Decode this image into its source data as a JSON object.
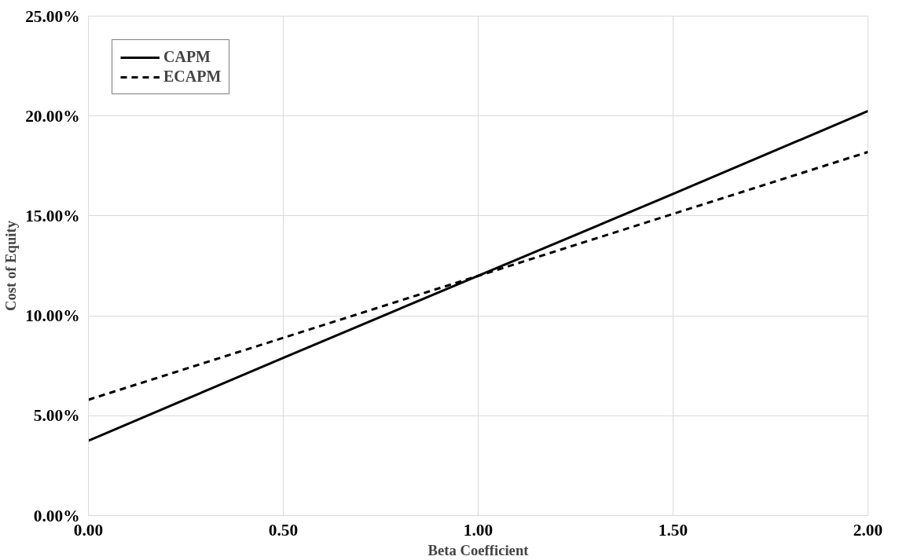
{
  "chart_data": {
    "type": "line",
    "xlabel": "Beta Coefficient",
    "ylabel": "Cost of Equity",
    "x": [
      0,
      0.5,
      1,
      1.5,
      2
    ],
    "series": [
      {
        "name": "CAPM",
        "color": "#000000",
        "line_style": "solid",
        "values": [
          3.75,
          7.9,
          12.0,
          16.1,
          20.25
        ]
      },
      {
        "name": "ECAPM",
        "color": "#000000",
        "line_style": "dashed",
        "values": [
          5.8,
          8.9,
          12.0,
          15.1,
          18.2
        ]
      }
    ],
    "xlim": [
      0,
      2
    ],
    "ylim": [
      0,
      25
    ],
    "xticks": [
      {
        "value": 0,
        "label": "0.00"
      },
      {
        "value": 0.5,
        "label": "0.50"
      },
      {
        "value": 1,
        "label": "1.00"
      },
      {
        "value": 1.5,
        "label": "1.50"
      },
      {
        "value": 2,
        "label": "2.00"
      }
    ],
    "yticks": [
      {
        "value": 0,
        "label": "0.00%"
      },
      {
        "value": 5,
        "label": "5.00%"
      },
      {
        "value": 10,
        "label": "10.00%"
      },
      {
        "value": 15,
        "label": "15.00%"
      },
      {
        "value": 20,
        "label": "20.00%"
      },
      {
        "value": 25,
        "label": "25.00%"
      }
    ],
    "grid": true,
    "legend": "top left",
    "marker": "none"
  }
}
